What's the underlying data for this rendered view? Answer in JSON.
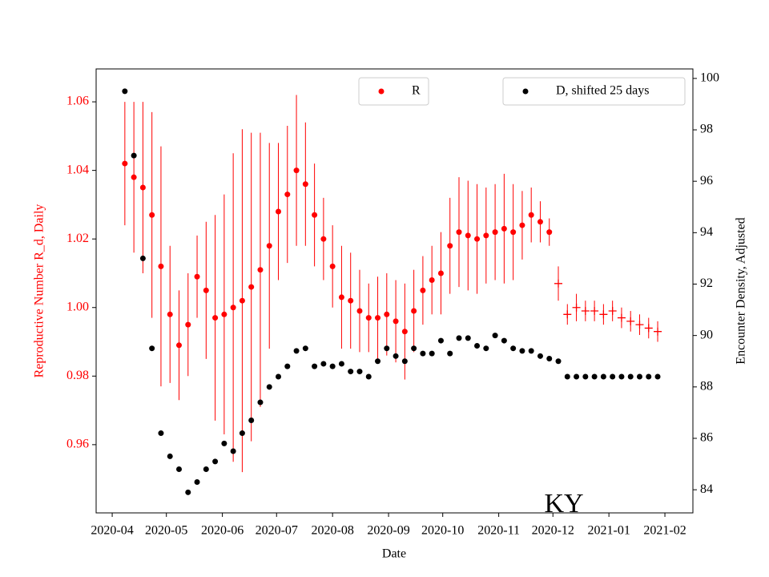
{
  "chart_data": {
    "type": "errorbar",
    "x_label": "Date",
    "y_label": "Reproductive Number R_d, Daily",
    "y2_label": "Encounter Density, Adjusted",
    "annotation": "KY",
    "xlim": [
      -3.18,
      62.9
    ],
    "xticks": [
      {
        "value": -1.4,
        "label": "2020-04"
      },
      {
        "value": 4.6,
        "label": "2020-05"
      },
      {
        "value": 10.8,
        "label": "2020-06"
      },
      {
        "value": 16.8,
        "label": "2020-07"
      },
      {
        "value": 23,
        "label": "2020-08"
      },
      {
        "value": 29.2,
        "label": "2020-09"
      },
      {
        "value": 35.2,
        "label": "2020-10"
      },
      {
        "value": 41.4,
        "label": "2020-11"
      },
      {
        "value": 47.4,
        "label": "2020-12"
      },
      {
        "value": 53.6,
        "label": "2021-01"
      },
      {
        "value": 59.8,
        "label": "2021-02"
      }
    ],
    "ylim": [
      0.9401,
      1.0696
    ],
    "yticks": [
      0.96,
      0.98,
      {
        "value": 1.0,
        "label": "1.00"
      },
      1.02,
      1.04,
      1.06
    ],
    "y2lim": [
      83.1,
      100.37
    ],
    "y2ticks": [
      84,
      86,
      88,
      90,
      92,
      94,
      96,
      98,
      100
    ],
    "y_label_color": "#ff0000",
    "series": [
      {
        "name": "R",
        "color": "#ff0000",
        "marker": "dot",
        "values": [
          1.042,
          1.038,
          1.035,
          1.027,
          1.012,
          0.998,
          0.989,
          0.995,
          1.009,
          1.005,
          0.997,
          0.998,
          1.0,
          1.002,
          1.006,
          1.011,
          1.018,
          1.028,
          1.033,
          1.04,
          1.036,
          1.027,
          1.02,
          1.012,
          1.003,
          1.002,
          0.999,
          0.997,
          0.997,
          0.998,
          0.996,
          0.993,
          0.999,
          1.005,
          1.008,
          1.01,
          1.018,
          1.022,
          1.021,
          1.02,
          1.021,
          1.022,
          1.023,
          1.022,
          1.024,
          1.027,
          1.025,
          1.022,
          null,
          null,
          null,
          null,
          null,
          null,
          null,
          null,
          null,
          null,
          null,
          null
        ],
        "errors": [
          0.018,
          0.022,
          0.025,
          0.03,
          0.035,
          0.02,
          0.016,
          0.015,
          0.012,
          0.02,
          0.03,
          0.035,
          0.045,
          0.05,
          0.045,
          0.04,
          0.03,
          0.02,
          0.02,
          0.022,
          0.018,
          0.015,
          0.012,
          0.012,
          0.015,
          0.014,
          0.012,
          0.01,
          0.012,
          0.012,
          0.012,
          0.014,
          0.012,
          0.01,
          0.01,
          0.012,
          0.014,
          0.016,
          0.016,
          0.016,
          0.014,
          0.014,
          0.016,
          0.014,
          0.01,
          0.008,
          0.006,
          0.004,
          null,
          null,
          null,
          null,
          null,
          null,
          null,
          null,
          null,
          null,
          null,
          null
        ]
      },
      {
        "color": "#ff0000",
        "marker": "plus",
        "values": [
          null,
          null,
          null,
          null,
          null,
          null,
          null,
          null,
          null,
          null,
          null,
          null,
          null,
          null,
          null,
          null,
          null,
          null,
          null,
          null,
          null,
          null,
          null,
          null,
          null,
          null,
          null,
          null,
          null,
          null,
          null,
          null,
          null,
          null,
          null,
          null,
          null,
          null,
          null,
          null,
          null,
          null,
          null,
          null,
          null,
          null,
          null,
          null,
          1.007,
          0.998,
          1.0,
          0.999,
          0.999,
          0.998,
          0.999,
          0.997,
          0.996,
          0.995,
          0.994,
          0.993
        ],
        "errors": [
          null,
          null,
          null,
          null,
          null,
          null,
          null,
          null,
          null,
          null,
          null,
          null,
          null,
          null,
          null,
          null,
          null,
          null,
          null,
          null,
          null,
          null,
          null,
          null,
          null,
          null,
          null,
          null,
          null,
          null,
          null,
          null,
          null,
          null,
          null,
          null,
          null,
          null,
          null,
          null,
          null,
          null,
          null,
          null,
          null,
          null,
          null,
          null,
          0.005,
          0.003,
          0.004,
          0.003,
          0.003,
          0.003,
          0.003,
          0.003,
          0.003,
          0.003,
          0.003,
          0.003
        ]
      },
      {
        "name": "D, shifted 25 days",
        "color": "#000000",
        "marker": "dot",
        "axis": "y2",
        "values": [
          99.5,
          97,
          93,
          89.5,
          86.2,
          85.3,
          84.8,
          83.9,
          84.3,
          84.8,
          85.1,
          85.8,
          85.5,
          86.2,
          86.7,
          87.4,
          88.0,
          88.4,
          88.8,
          89.4,
          89.5,
          88.8,
          88.9,
          88.8,
          88.9,
          88.6,
          88.6,
          88.4,
          89.0,
          89.5,
          89.2,
          89.0,
          89.5,
          89.3,
          89.3,
          89.8,
          89.3,
          89.9,
          89.9,
          89.6,
          89.5,
          90.0,
          89.8,
          89.5,
          89.4,
          89.4,
          89.2,
          89.1,
          89.0,
          88.4,
          88.4,
          88.4,
          88.4,
          88.4,
          88.4,
          88.4,
          88.4,
          88.4,
          88.4,
          88.4
        ]
      }
    ]
  }
}
